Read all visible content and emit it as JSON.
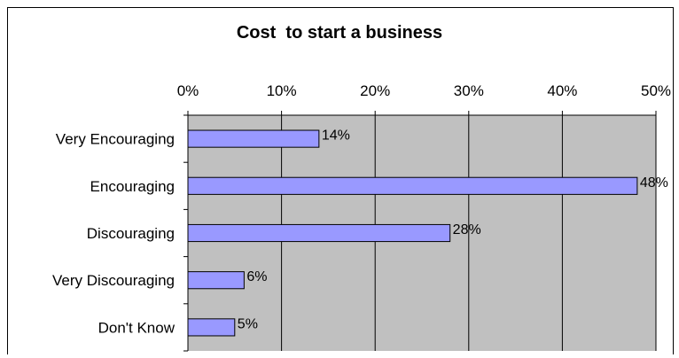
{
  "chart_data": {
    "type": "bar",
    "orientation": "horizontal",
    "title": "Cost  to start a business",
    "categories": [
      "Very Encouraging",
      "Encouraging",
      "Discouraging",
      "Very Discouraging",
      "Don't Know"
    ],
    "values": [
      14,
      48,
      28,
      6,
      5
    ],
    "data_labels": [
      "14%",
      "48%",
      "28%",
      "6%",
      "5%"
    ],
    "xlim": [
      0,
      50
    ],
    "x_ticks": [
      0,
      10,
      20,
      30,
      40,
      50
    ],
    "x_tick_labels": [
      "0%",
      "10%",
      "20%",
      "30%",
      "40%",
      "50%"
    ],
    "x_axis_position": "top",
    "grid": true,
    "legend": "none",
    "colors": {
      "bar_fill": "#9999ff",
      "bar_stroke": "#000000",
      "plot_background": "#c0c0c0",
      "gridline": "#000000"
    }
  }
}
